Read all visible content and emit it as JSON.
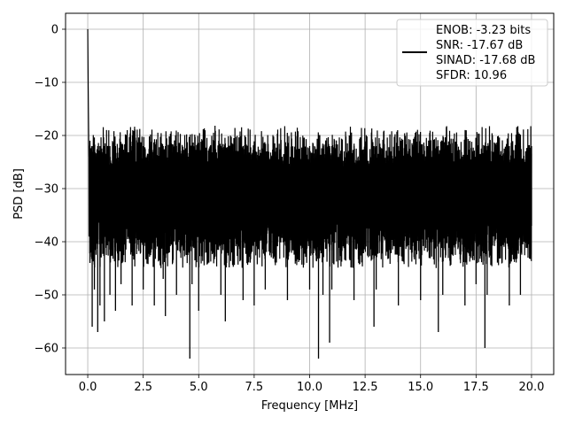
{
  "chart_data": {
    "type": "line",
    "xlabel": "Frequency [MHz]",
    "ylabel": "PSD [dB]",
    "xlim": [
      -1.0,
      21.0
    ],
    "ylim": [
      -65.0,
      3.0
    ],
    "xticks": [
      0.0,
      2.5,
      5.0,
      7.5,
      10.0,
      12.5,
      15.0,
      17.5,
      20.0
    ],
    "xtick_labels": [
      "0.0",
      "2.5",
      "5.0",
      "7.5",
      "10.0",
      "12.5",
      "15.0",
      "17.5",
      "20.0"
    ],
    "yticks": [
      0,
      -10,
      -20,
      -30,
      -40,
      -50,
      -60
    ],
    "ytick_labels": [
      "0",
      "−10",
      "−20",
      "−30",
      "−40",
      "−50",
      "−60"
    ],
    "grid": true,
    "legend_placement": "top-right",
    "line_color": "#000000",
    "series": [
      {
        "name": "",
        "legend_lines": [
          "ENOB: -3.23 bits",
          "SNR: -17.67 dB",
          "SINAD: -17.68 dB",
          "SFDR: 10.96"
        ],
        "noise_floor_upper_db": -18,
        "noise_floor_lower_db": -45,
        "x": [
          0.0,
          0.02,
          0.05,
          0.1,
          0.2,
          0.3,
          0.45,
          0.55,
          0.75,
          1.0,
          1.25,
          1.5,
          2.0,
          2.5,
          3.0,
          3.4,
          3.5,
          4.0,
          4.6,
          4.7,
          5.0,
          6.0,
          6.2,
          7.0,
          7.5,
          8.0,
          9.0,
          10.0,
          10.4,
          10.6,
          10.9,
          11.0,
          12.0,
          12.9,
          13.0,
          14.0,
          15.0,
          15.8,
          16.0,
          17.0,
          17.5,
          17.9,
          18.0,
          19.0,
          19.5,
          20.0
        ],
        "y": [
          0.0,
          -11.0,
          -24.0,
          -44.0,
          -56.0,
          -49.0,
          -57.0,
          -52.0,
          -55.0,
          -50.0,
          -53.0,
          -48.0,
          -52.0,
          -49.0,
          -52.0,
          -47.0,
          -54.0,
          -50.0,
          -62.0,
          -48.0,
          -53.0,
          -50.0,
          -55.0,
          -51.0,
          -52.0,
          -49.0,
          -51.0,
          -49.0,
          -62.0,
          -50.0,
          -59.0,
          -49.0,
          -51.0,
          -56.0,
          -49.0,
          -52.0,
          -51.0,
          -57.0,
          -50.0,
          -52.0,
          -48.0,
          -60.0,
          -50.0,
          -52.0,
          -50.0,
          -37.0
        ]
      }
    ]
  }
}
